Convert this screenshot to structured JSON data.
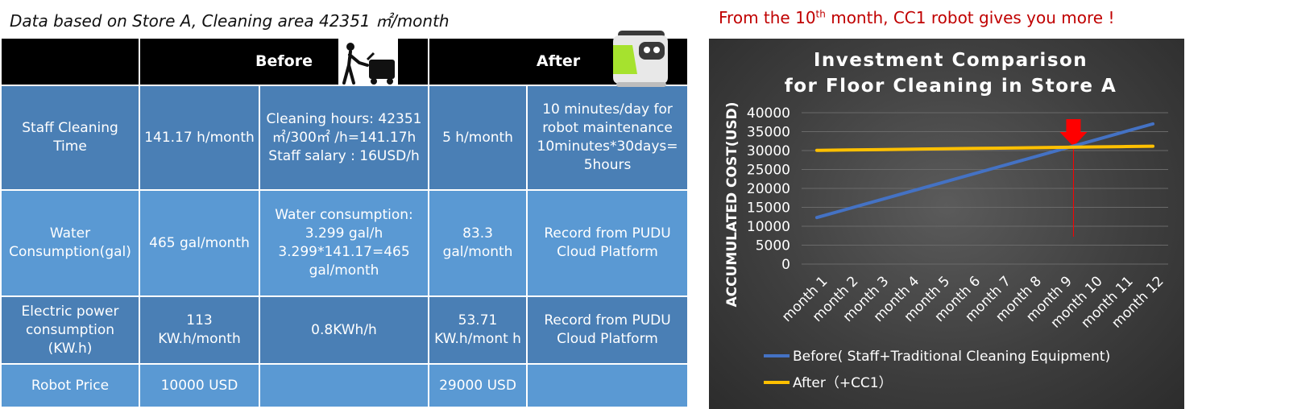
{
  "header": {
    "left_title": "Data based on Store A, Cleaning area 42351 ㎡/month",
    "right_title_pre": "From the 10",
    "right_title_sup": "th",
    "right_title_post": " month, CC1 robot gives you more !"
  },
  "table": {
    "head_before": "Before",
    "head_after": "After",
    "icons": {
      "before": "worker-pushing-cleaning-machine-icon",
      "after": "cc1-robot-icon"
    },
    "rows": [
      {
        "label": "Staff Cleaning Time",
        "before_value": "141.17 h/month",
        "before_note": "Cleaning hours: 42351㎡/300㎡ /h=141.17h Staff salary : 16USD/h",
        "after_value": "5 h/month",
        "after_note": "10 minutes/day for robot maintenance 10minutes*30days= 5hours"
      },
      {
        "label": "Water Consumption(gal)",
        "before_value": "465 gal/month",
        "before_note": "Water consumption: 3.299 gal/h 3.299*141.17=465 gal/month",
        "after_value": "83.3 gal/month",
        "after_note": "Record from PUDU Cloud Platform"
      },
      {
        "label": "Electric power consumption (KW.h)",
        "before_value": "113 KW.h/month",
        "before_note": "0.8KWh/h",
        "after_value": "53.71 KW.h/mont h",
        "after_note": "Record from PUDU Cloud Platform"
      },
      {
        "label": "Robot Price",
        "before_value": "10000 USD",
        "before_note": "",
        "after_value": "29000 USD",
        "after_note": ""
      }
    ]
  },
  "chart_data": {
    "type": "line",
    "title": "Investment Comparison for Floor Cleaning in Store A",
    "title_lines": [
      "Investment Comparison",
      "for Floor Cleaning in Store A"
    ],
    "xlabel": "",
    "ylabel": "ACCUMULATED COST(USD)",
    "ylim": [
      0,
      40000
    ],
    "yticks": [
      0,
      5000,
      10000,
      15000,
      20000,
      25000,
      30000,
      35000,
      40000
    ],
    "categories": [
      "month 1",
      "month 2",
      "month 3",
      "month 4",
      "month 5",
      "month 6",
      "month 7",
      "month 8",
      "month 9",
      "month 10",
      "month 11",
      "month 12"
    ],
    "series": [
      {
        "name": "Before( Staff+Traditional Cleaning Equipment)",
        "color": "#4472c4",
        "values": [
          12300,
          14550,
          16800,
          19050,
          21300,
          23550,
          25800,
          28050,
          30300,
          32550,
          34800,
          37050
        ]
      },
      {
        "name": "After（+CC1）",
        "color": "#ffc000",
        "values": [
          30050,
          30150,
          30250,
          30350,
          30450,
          30550,
          30650,
          30750,
          30850,
          30950,
          31050,
          31150
        ]
      }
    ],
    "annotation": {
      "type": "crossover-marker",
      "x": 9.4,
      "color": "#ff0000",
      "icon": "down-arrow-icon"
    },
    "grid": true,
    "legend": "bottom"
  }
}
